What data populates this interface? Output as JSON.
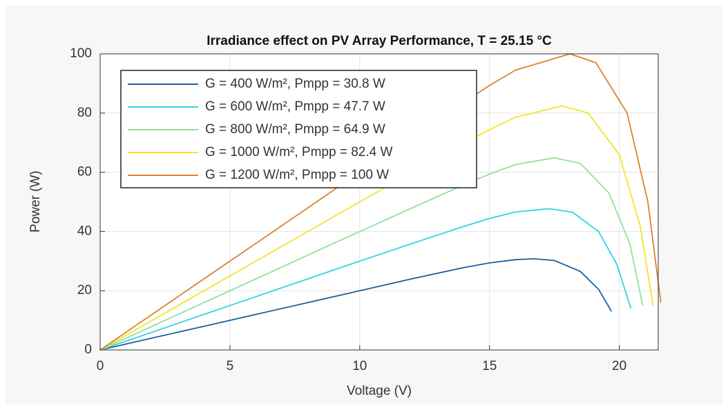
{
  "chart_data": {
    "type": "line",
    "title": "Irradiance effect on PV Array Performance, T = 25.15 °C",
    "xlabel": "Voltage (V)",
    "ylabel": "Power (W)",
    "xlim": [
      0,
      21.5
    ],
    "xticks": [
      0,
      5,
      10,
      15,
      20
    ],
    "ylim": [
      0,
      100
    ],
    "yticks": [
      0,
      20,
      40,
      60,
      80,
      100
    ],
    "grid": true,
    "legend": "northwest",
    "series": [
      {
        "name": "G = 400 W/m², Pmpp = 30.8 W",
        "color": "#1b5f9e",
        "x": [
          0,
          2,
          4,
          6,
          8,
          10,
          12,
          14,
          15,
          16,
          16.7,
          17.5,
          18.5,
          19.2,
          19.7
        ],
        "values": [
          0,
          4,
          8,
          12,
          16,
          20,
          24,
          27.8,
          29.4,
          30.5,
          30.8,
          30.2,
          26.5,
          20.5,
          13
        ]
      },
      {
        "name": "G = 600 W/m², Pmpp = 47.7 W",
        "color": "#2fd3e3",
        "x": [
          0,
          2,
          4,
          6,
          8,
          10,
          12,
          14,
          15,
          16,
          17.3,
          18.2,
          19.2,
          19.9,
          20.45
        ],
        "values": [
          0,
          6,
          12,
          18,
          24,
          30,
          35.9,
          41.7,
          44.4,
          46.6,
          47.7,
          46.5,
          40,
          29,
          14
        ]
      },
      {
        "name": "G = 800 W/m², Pmpp = 64.9 W",
        "color": "#8ee29a",
        "x": [
          0,
          2,
          4,
          6,
          8,
          10,
          12,
          14,
          15,
          16,
          17.5,
          18.5,
          19.6,
          20.4,
          20.9
        ],
        "values": [
          0,
          8,
          16,
          24,
          32,
          40,
          47.9,
          55.7,
          59.4,
          62.6,
          64.9,
          63,
          53,
          36,
          15
        ]
      },
      {
        "name": "G = 1000 W/m², Pmpp = 82.4 W",
        "color": "#f2e424",
        "x": [
          0,
          2,
          4,
          6,
          8,
          10,
          12,
          14,
          15,
          16,
          17.8,
          18.8,
          20,
          20.8,
          21.3
        ],
        "values": [
          0,
          10,
          20,
          30,
          40,
          50,
          59.9,
          69.7,
          74.4,
          78.6,
          82.4,
          80,
          66,
          42,
          15
        ]
      },
      {
        "name": "G = 1200 W/m², Pmpp = 100 W",
        "color": "#d9822e",
        "x": [
          0,
          2,
          4,
          6,
          8,
          10,
          12,
          14,
          15,
          16,
          18.1,
          19.1,
          20.3,
          21.1,
          21.6
        ],
        "values": [
          0,
          12,
          24,
          36,
          48,
          60,
          71.9,
          83.6,
          89.3,
          94.5,
          100,
          97,
          80,
          50,
          16
        ]
      }
    ]
  }
}
